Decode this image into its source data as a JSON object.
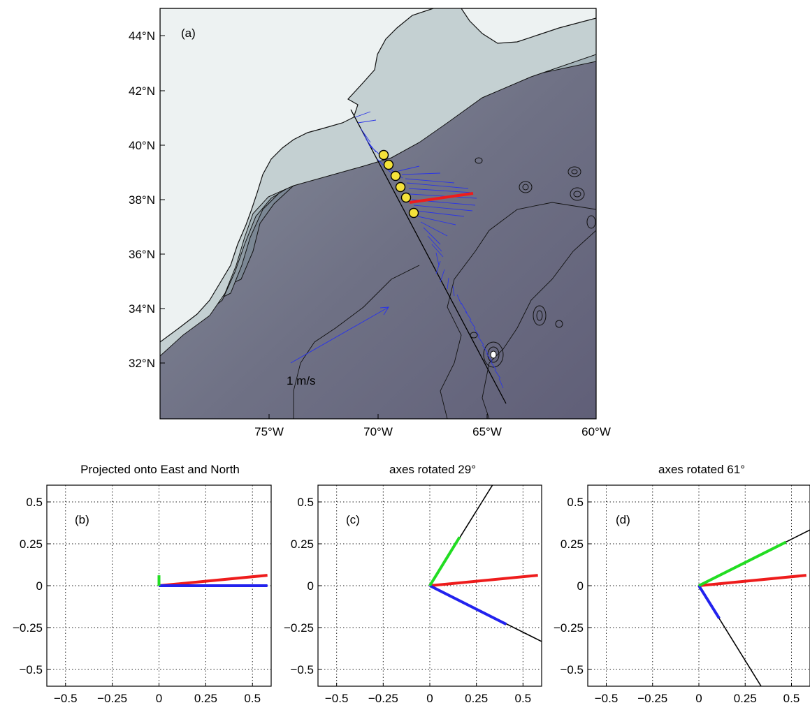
{
  "map_panel": {
    "label": "(a)",
    "scale_label": "1 m/s",
    "lat_ticks": [
      "32°N",
      "34°N",
      "36°N",
      "38°N",
      "40°N",
      "42°N",
      "44°N"
    ],
    "lon_ticks": [
      "75°W",
      "70°W",
      "65°W",
      "60°W"
    ],
    "colors": {
      "section_line": "#000000",
      "current_vectors": "#2b35e6",
      "mean_vector": "#ee1c1c",
      "moorings": "#f4e23a"
    }
  },
  "chart_data": [
    {
      "type": "line",
      "panel_label": "(b)",
      "title": "Projected onto East and North",
      "xlim": [
        -0.6,
        0.6
      ],
      "ylim": [
        -0.6,
        0.6
      ],
      "xticks": [
        -0.5,
        -0.25,
        0,
        0.25,
        0.5
      ],
      "yticks": [
        -0.5,
        -0.25,
        0,
        0.25,
        0.5
      ],
      "xtick_labels": [
        "−0.5",
        "−0.25",
        "0",
        "0.25",
        "0.5"
      ],
      "ytick_labels": [
        "−0.5",
        "−0.25",
        "0",
        "0.25",
        "0.5"
      ],
      "grid": true,
      "axis_lines": [],
      "series": [
        {
          "color": "#ee1c1c",
          "x": [
            0,
            0.58
          ],
          "y": [
            0,
            0.062
          ]
        },
        {
          "color": "#2222ee",
          "x": [
            0,
            0.58
          ],
          "y": [
            0,
            0
          ]
        },
        {
          "color": "#22dd22",
          "x": [
            0,
            0
          ],
          "y": [
            0,
            0.062
          ]
        }
      ]
    },
    {
      "type": "line",
      "panel_label": "(c)",
      "title": "axes rotated 29°",
      "xlim": [
        -0.6,
        0.6
      ],
      "ylim": [
        -0.6,
        0.6
      ],
      "xticks": [
        -0.5,
        -0.25,
        0,
        0.25,
        0.5
      ],
      "yticks": [
        -0.5,
        -0.25,
        0,
        0.25,
        0.5
      ],
      "xtick_labels": [
        "−0.5",
        "−0.25",
        "0",
        "0.25",
        "0.5"
      ],
      "ytick_labels": [
        "−0.5",
        "−0.25",
        "0",
        "0.25",
        "0.5"
      ],
      "grid": true,
      "axis_lines": [
        {
          "color": "#000000",
          "x": [
            0,
            0.336
          ],
          "y": [
            0,
            0.6
          ]
        },
        {
          "color": "#000000",
          "x": [
            0,
            0.6
          ],
          "y": [
            0,
            -0.333
          ]
        }
      ],
      "series": [
        {
          "color": "#ee1c1c",
          "x": [
            0,
            0.58
          ],
          "y": [
            0,
            0.062
          ]
        },
        {
          "color": "#2222ee",
          "x": [
            0,
            0.41
          ],
          "y": [
            0,
            -0.23
          ]
        },
        {
          "color": "#22dd22",
          "x": [
            0,
            0.16
          ],
          "y": [
            0,
            0.29
          ]
        }
      ]
    },
    {
      "type": "line",
      "panel_label": "(d)",
      "title": "axes rotated 61°",
      "xlim": [
        -0.6,
        0.6
      ],
      "ylim": [
        -0.6,
        0.6
      ],
      "xticks": [
        -0.5,
        -0.25,
        0,
        0.25,
        0.5
      ],
      "yticks": [
        -0.5,
        -0.25,
        0,
        0.25,
        0.5
      ],
      "xtick_labels": [
        "−0.5",
        "−0.25",
        "0",
        "0.25",
        "0.5"
      ],
      "ytick_labels": [
        "−0.5",
        "−0.25",
        "0",
        "0.25",
        "0.5"
      ],
      "grid": true,
      "axis_lines": [
        {
          "color": "#000000",
          "x": [
            0,
            0.6
          ],
          "y": [
            0,
            0.333
          ]
        },
        {
          "color": "#000000",
          "x": [
            0,
            0.336
          ],
          "y": [
            0,
            -0.6
          ]
        }
      ],
      "series": [
        {
          "color": "#ee1c1c",
          "x": [
            0,
            0.58
          ],
          "y": [
            0,
            0.062
          ]
        },
        {
          "color": "#2222ee",
          "x": [
            0,
            0.11
          ],
          "y": [
            0,
            -0.195
          ]
        },
        {
          "color": "#22dd22",
          "x": [
            0,
            0.47
          ],
          "y": [
            0,
            0.26
          ]
        }
      ]
    }
  ]
}
